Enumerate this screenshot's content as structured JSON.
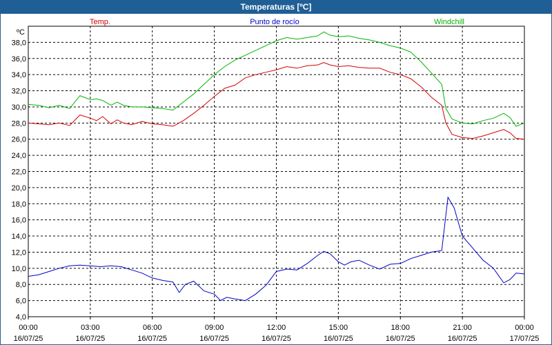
{
  "chart_data": {
    "type": "line",
    "title": "Temperaturas [ºC]",
    "ylabel": "ºC",
    "ylim": [
      4,
      40
    ],
    "xlim": [
      0,
      24
    ],
    "y_ticks": [
      "4,0",
      "6,0",
      "8,0",
      "10,0",
      "12,0",
      "14,0",
      "16,0",
      "18,0",
      "20,0",
      "22,0",
      "24,0",
      "26,0",
      "28,0",
      "30,0",
      "32,0",
      "34,0",
      "36,0",
      "38,0"
    ],
    "x_ticks": [
      {
        "time": "00:00",
        "date": "16/07/25"
      },
      {
        "time": "03:00",
        "date": "16/07/25"
      },
      {
        "time": "06:00",
        "date": "16/07/25"
      },
      {
        "time": "09:00",
        "date": "16/07/25"
      },
      {
        "time": "12:00",
        "date": "16/07/25"
      },
      {
        "time": "15:00",
        "date": "16/07/25"
      },
      {
        "time": "18:00",
        "date": "16/07/25"
      },
      {
        "time": "21:00",
        "date": "16/07/25"
      },
      {
        "time": "00:00",
        "date": "17/07/25"
      }
    ],
    "series": [
      {
        "name": "Temp.",
        "color": "#d40000",
        "x": [
          0,
          0.5,
          1,
          1.5,
          2,
          2.5,
          3,
          3.3,
          3.6,
          4,
          4.3,
          4.6,
          5,
          5.5,
          6,
          6.5,
          7,
          7.5,
          8,
          8.5,
          9,
          9.5,
          10,
          10.5,
          11,
          11.5,
          12,
          12.5,
          13,
          13.5,
          14,
          14.3,
          14.6,
          15,
          15.5,
          16,
          16.5,
          17,
          17.5,
          18,
          18.5,
          19,
          19.5,
          20,
          20.2,
          20.5,
          21,
          21.5,
          22,
          22.5,
          23,
          23.3,
          23.6,
          24
        ],
        "values": [
          28.0,
          27.9,
          27.8,
          28.0,
          27.7,
          29.0,
          28.6,
          28.3,
          28.8,
          27.9,
          28.4,
          28.0,
          27.8,
          28.2,
          27.9,
          27.8,
          27.6,
          28.3,
          29.2,
          30.2,
          31.3,
          32.3,
          32.7,
          33.6,
          34.0,
          34.3,
          34.6,
          35.0,
          34.8,
          35.1,
          35.2,
          35.5,
          35.2,
          35.0,
          35.1,
          34.9,
          34.8,
          34.8,
          34.3,
          34.0,
          33.5,
          32.5,
          31.2,
          30.2,
          28.0,
          26.6,
          26.2,
          26.1,
          26.4,
          26.8,
          27.2,
          26.8,
          26.1,
          26.0
        ]
      },
      {
        "name": "Punto de rocío",
        "color": "#0000c8",
        "x": [
          0,
          0.5,
          1,
          1.5,
          2,
          2.5,
          3,
          3.5,
          4,
          4.5,
          5,
          5.5,
          6,
          6.5,
          7,
          7.3,
          7.6,
          8,
          8.5,
          9,
          9.3,
          9.6,
          10,
          10.5,
          11,
          11.5,
          12,
          12.5,
          13,
          13.5,
          14,
          14.3,
          14.6,
          15,
          15.3,
          15.6,
          16,
          16.5,
          17,
          17.5,
          18,
          18.5,
          19,
          19.5,
          20,
          20.3,
          20.6,
          21,
          21.5,
          22,
          22.5,
          23,
          23.3,
          23.6,
          24
        ],
        "values": [
          9.0,
          9.2,
          9.6,
          10.0,
          10.3,
          10.4,
          10.3,
          10.2,
          10.3,
          10.2,
          9.8,
          9.4,
          8.8,
          8.5,
          8.3,
          7.0,
          8.0,
          8.4,
          7.2,
          6.8,
          6.0,
          6.4,
          6.2,
          6.0,
          6.8,
          7.9,
          9.6,
          9.9,
          9.8,
          10.6,
          11.6,
          12.1,
          11.8,
          10.8,
          10.4,
          10.8,
          11.0,
          10.4,
          9.9,
          10.5,
          10.6,
          11.2,
          11.6,
          12.0,
          12.2,
          18.8,
          17.5,
          14.0,
          12.5,
          11.0,
          10.0,
          8.2,
          8.6,
          9.4,
          9.3
        ]
      },
      {
        "name": "Windchill",
        "color": "#00b400",
        "x": [
          0,
          0.5,
          1,
          1.5,
          2,
          2.5,
          3,
          3.3,
          3.6,
          4,
          4.3,
          4.6,
          5,
          5.5,
          6,
          6.5,
          7,
          7.5,
          8,
          8.5,
          9,
          9.5,
          10,
          10.5,
          11,
          11.5,
          12,
          12.5,
          13,
          13.5,
          14,
          14.3,
          14.6,
          15,
          15.5,
          16,
          16.5,
          17,
          17.5,
          18,
          18.5,
          19,
          19.5,
          20,
          20.2,
          20.5,
          21,
          21.5,
          22,
          22.5,
          23,
          23.3,
          23.6,
          24
        ],
        "values": [
          30.3,
          30.2,
          29.9,
          30.2,
          29.8,
          31.4,
          30.9,
          31.0,
          30.8,
          30.2,
          30.6,
          30.2,
          30.0,
          30.0,
          29.9,
          29.8,
          29.6,
          30.6,
          31.6,
          32.8,
          34.0,
          35.0,
          35.8,
          36.4,
          37.0,
          37.6,
          38.2,
          38.6,
          38.4,
          38.6,
          38.8,
          39.3,
          38.9,
          38.7,
          38.8,
          38.5,
          38.3,
          38.0,
          37.6,
          37.3,
          36.8,
          35.6,
          34.2,
          32.8,
          29.8,
          28.5,
          28.0,
          27.9,
          28.3,
          28.6,
          29.2,
          28.7,
          27.6,
          28.0
        ]
      }
    ]
  }
}
